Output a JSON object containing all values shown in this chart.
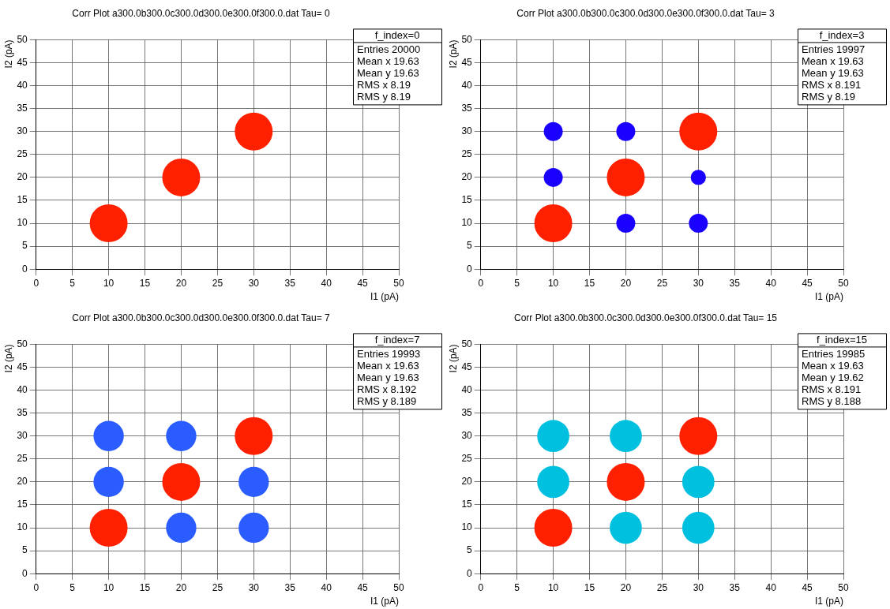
{
  "chart_data": [
    {
      "type": "bubble",
      "title": "Corr Plot a300.0b300.0c300.0d300.0e300.0f300.0.dat Tau= 0",
      "xlabel": "I1 (pA)",
      "ylabel": "I2 (pA)",
      "xlim": [
        0,
        50
      ],
      "ylim": [
        0,
        50
      ],
      "xticks": [
        0,
        5,
        10,
        15,
        20,
        25,
        30,
        35,
        40,
        45,
        50
      ],
      "yticks": [
        0,
        5,
        10,
        15,
        20,
        25,
        30,
        35,
        40,
        45,
        50
      ],
      "grid": true,
      "legend": false,
      "annotations": [
        "f_index=0",
        "Entries 20000",
        "Mean x 19.63",
        "Mean y 19.63",
        "RMS x 8.19",
        "RMS y 8.19"
      ],
      "x": [
        10,
        20,
        30
      ],
      "values": [
        10,
        20,
        30
      ],
      "sizes": [
        1,
        1,
        1
      ],
      "colors": [
        "#ff2000",
        "#ff2000",
        "#ff2000"
      ]
    },
    {
      "type": "bubble",
      "title": "Corr Plot a300.0b300.0c300.0d300.0e300.0f300.0.dat Tau= 3",
      "xlabel": "I1 (pA)",
      "ylabel": "I2 (pA)",
      "xlim": [
        0,
        50
      ],
      "ylim": [
        0,
        50
      ],
      "xticks": [
        0,
        5,
        10,
        15,
        20,
        25,
        30,
        35,
        40,
        45,
        50
      ],
      "yticks": [
        0,
        5,
        10,
        15,
        20,
        25,
        30,
        35,
        40,
        45,
        50
      ],
      "grid": true,
      "legend": false,
      "annotations": [
        "f_index=3",
        "Entries 19997",
        "Mean x 19.63",
        "Mean y 19.63",
        "RMS x 8.191",
        "RMS y 8.19"
      ],
      "x": [
        10,
        20,
        30,
        10,
        20,
        30,
        10,
        20,
        30
      ],
      "values": [
        10,
        10,
        10,
        20,
        20,
        20,
        30,
        30,
        30
      ],
      "sizes": [
        1,
        0.25,
        0.25,
        0.25,
        1,
        0.16,
        0.25,
        0.25,
        1
      ],
      "colors": [
        "#ff2000",
        "#1a00ff",
        "#1a00ff",
        "#1a00ff",
        "#ff2000",
        "#1a00ff",
        "#1a00ff",
        "#1a00ff",
        "#ff2000"
      ]
    },
    {
      "type": "bubble",
      "title": "Corr Plot a300.0b300.0c300.0d300.0e300.0f300.0.dat Tau= 7",
      "xlabel": "I1 (pA)",
      "ylabel": "I2 (pA)",
      "xlim": [
        0,
        50
      ],
      "ylim": [
        0,
        50
      ],
      "xticks": [
        0,
        5,
        10,
        15,
        20,
        25,
        30,
        35,
        40,
        45,
        50
      ],
      "yticks": [
        0,
        5,
        10,
        15,
        20,
        25,
        30,
        35,
        40,
        45,
        50
      ],
      "grid": true,
      "legend": false,
      "annotations": [
        "f_index=7",
        "Entries 19993",
        "Mean x 19.63",
        "Mean y 19.63",
        "RMS x 8.192",
        "RMS y 8.189"
      ],
      "x": [
        10,
        20,
        30,
        10,
        20,
        30,
        10,
        20,
        30
      ],
      "values": [
        10,
        10,
        10,
        20,
        20,
        20,
        30,
        30,
        30
      ],
      "sizes": [
        1,
        0.64,
        0.64,
        0.64,
        1,
        0.64,
        0.64,
        0.64,
        1
      ],
      "colors": [
        "#ff2000",
        "#2a5cff",
        "#2a5cff",
        "#2a5cff",
        "#ff2000",
        "#2a5cff",
        "#2a5cff",
        "#2a5cff",
        "#ff2000"
      ]
    },
    {
      "type": "bubble",
      "title": "Corr Plot a300.0b300.0c300.0d300.0e300.0f300.0.dat Tau= 15",
      "xlabel": "I1 (pA)",
      "ylabel": "I2 (pA)",
      "xlim": [
        0,
        50
      ],
      "ylim": [
        0,
        50
      ],
      "xticks": [
        0,
        5,
        10,
        15,
        20,
        25,
        30,
        35,
        40,
        45,
        50
      ],
      "yticks": [
        0,
        5,
        10,
        15,
        20,
        25,
        30,
        35,
        40,
        45,
        50
      ],
      "grid": true,
      "legend": false,
      "annotations": [
        "f_index=15",
        "Entries 19985",
        "Mean x 19.63",
        "Mean y 19.62",
        "RMS x 8.191",
        "RMS y 8.188"
      ],
      "x": [
        10,
        20,
        30,
        10,
        20,
        30,
        10,
        20,
        30
      ],
      "values": [
        10,
        10,
        10,
        20,
        20,
        20,
        30,
        30,
        30
      ],
      "sizes": [
        1,
        0.72,
        0.72,
        0.72,
        1,
        0.72,
        0.72,
        0.72,
        1
      ],
      "colors": [
        "#ff2000",
        "#00c0e0",
        "#00c0e0",
        "#00c0e0",
        "#ff2000",
        "#00c0e0",
        "#00c0e0",
        "#00c0e0",
        "#ff2000"
      ]
    }
  ]
}
